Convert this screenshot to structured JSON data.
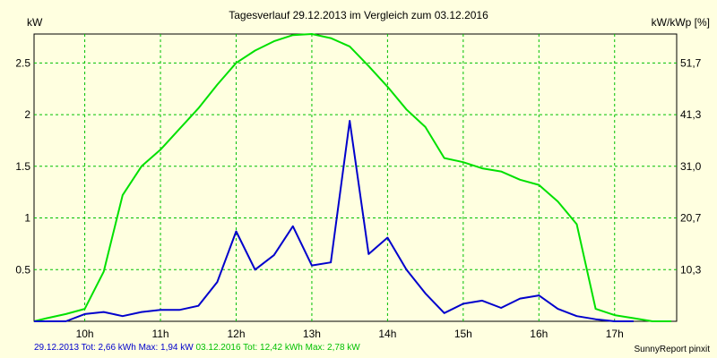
{
  "window": {
    "title": "Tagesverlauf 29.12.2013 im Vergleich zum 03.12.2016"
  },
  "chart_data": {
    "type": "line",
    "title": "Tagesverlauf 29.12.2013 im Vergleich zum 03.12.2016",
    "ylabel": "kW",
    "ylabel_right": "kW/kWp [%]",
    "xlim": [
      9.33,
      17.82
    ],
    "ylim": [
      0,
      2.78
    ],
    "x_ticks": [
      10,
      11,
      12,
      13,
      14,
      15,
      16,
      17
    ],
    "x_tick_labels": [
      "10h",
      "11h",
      "12h",
      "13h",
      "14h",
      "15h",
      "16h",
      "17h"
    ],
    "y_ticks": [
      0.5,
      1,
      1.5,
      2,
      2.5
    ],
    "y_tick_labels": [
      "0.5",
      "1",
      "1.5",
      "2",
      "2.5"
    ],
    "y2_ticks": [
      0.5,
      1,
      1.5,
      2,
      2.5
    ],
    "y2_tick_labels": [
      "10,3",
      "20,7",
      "31,0",
      "41,3",
      "51,7"
    ],
    "grid": true,
    "series": [
      {
        "color": "#00e000",
        "x": [
          9.33,
          9.5,
          9.75,
          10.0,
          10.25,
          10.5,
          10.75,
          11.0,
          11.25,
          11.5,
          11.75,
          12.0,
          12.25,
          12.5,
          12.75,
          13.0,
          13.25,
          13.5,
          13.75,
          14.0,
          14.25,
          14.5,
          14.75,
          15.0,
          15.25,
          15.5,
          15.75,
          16.0,
          16.25,
          16.5,
          16.75,
          17.0,
          17.25,
          17.5,
          17.75
        ],
        "values": [
          0.0,
          0.03,
          0.07,
          0.12,
          0.48,
          1.22,
          1.5,
          1.66,
          1.86,
          2.06,
          2.29,
          2.5,
          2.62,
          2.71,
          2.77,
          2.78,
          2.74,
          2.66,
          2.47,
          2.27,
          2.05,
          1.88,
          1.58,
          1.54,
          1.48,
          1.45,
          1.37,
          1.32,
          1.16,
          0.94,
          0.12,
          0.06,
          0.03,
          0.0,
          0.0
        ]
      },
      {
        "color": "#0000cc",
        "x": [
          9.33,
          9.75,
          10.0,
          10.25,
          10.5,
          10.75,
          11.0,
          11.25,
          11.5,
          11.75,
          12.0,
          12.25,
          12.5,
          12.75,
          13.0,
          13.25,
          13.5,
          13.75,
          14.0,
          14.25,
          14.5,
          14.75,
          15.0,
          15.25,
          15.5,
          15.75,
          16.0,
          16.25,
          16.5,
          16.75,
          17.0,
          17.25
        ],
        "values": [
          0.0,
          0.0,
          0.07,
          0.09,
          0.05,
          0.09,
          0.11,
          0.11,
          0.15,
          0.38,
          0.87,
          0.5,
          0.64,
          0.92,
          0.54,
          0.57,
          1.94,
          0.65,
          0.81,
          0.5,
          0.27,
          0.08,
          0.17,
          0.2,
          0.13,
          0.22,
          0.25,
          0.12,
          0.05,
          0.02,
          0.0,
          0.0
        ]
      }
    ]
  },
  "footer": {
    "blue_summary": "29.12.2013 Tot: 2,66 kWh Max: 1,94 kW",
    "green_summary": "03.12.2016 Tot: 12,42 kWh Max: 2,78 kW",
    "brand": "SunnyReport pinxit"
  },
  "colors": {
    "background": "#ffffe0",
    "grid": "#00c000",
    "green_series": "#00e000",
    "blue_series": "#0000cc"
  }
}
